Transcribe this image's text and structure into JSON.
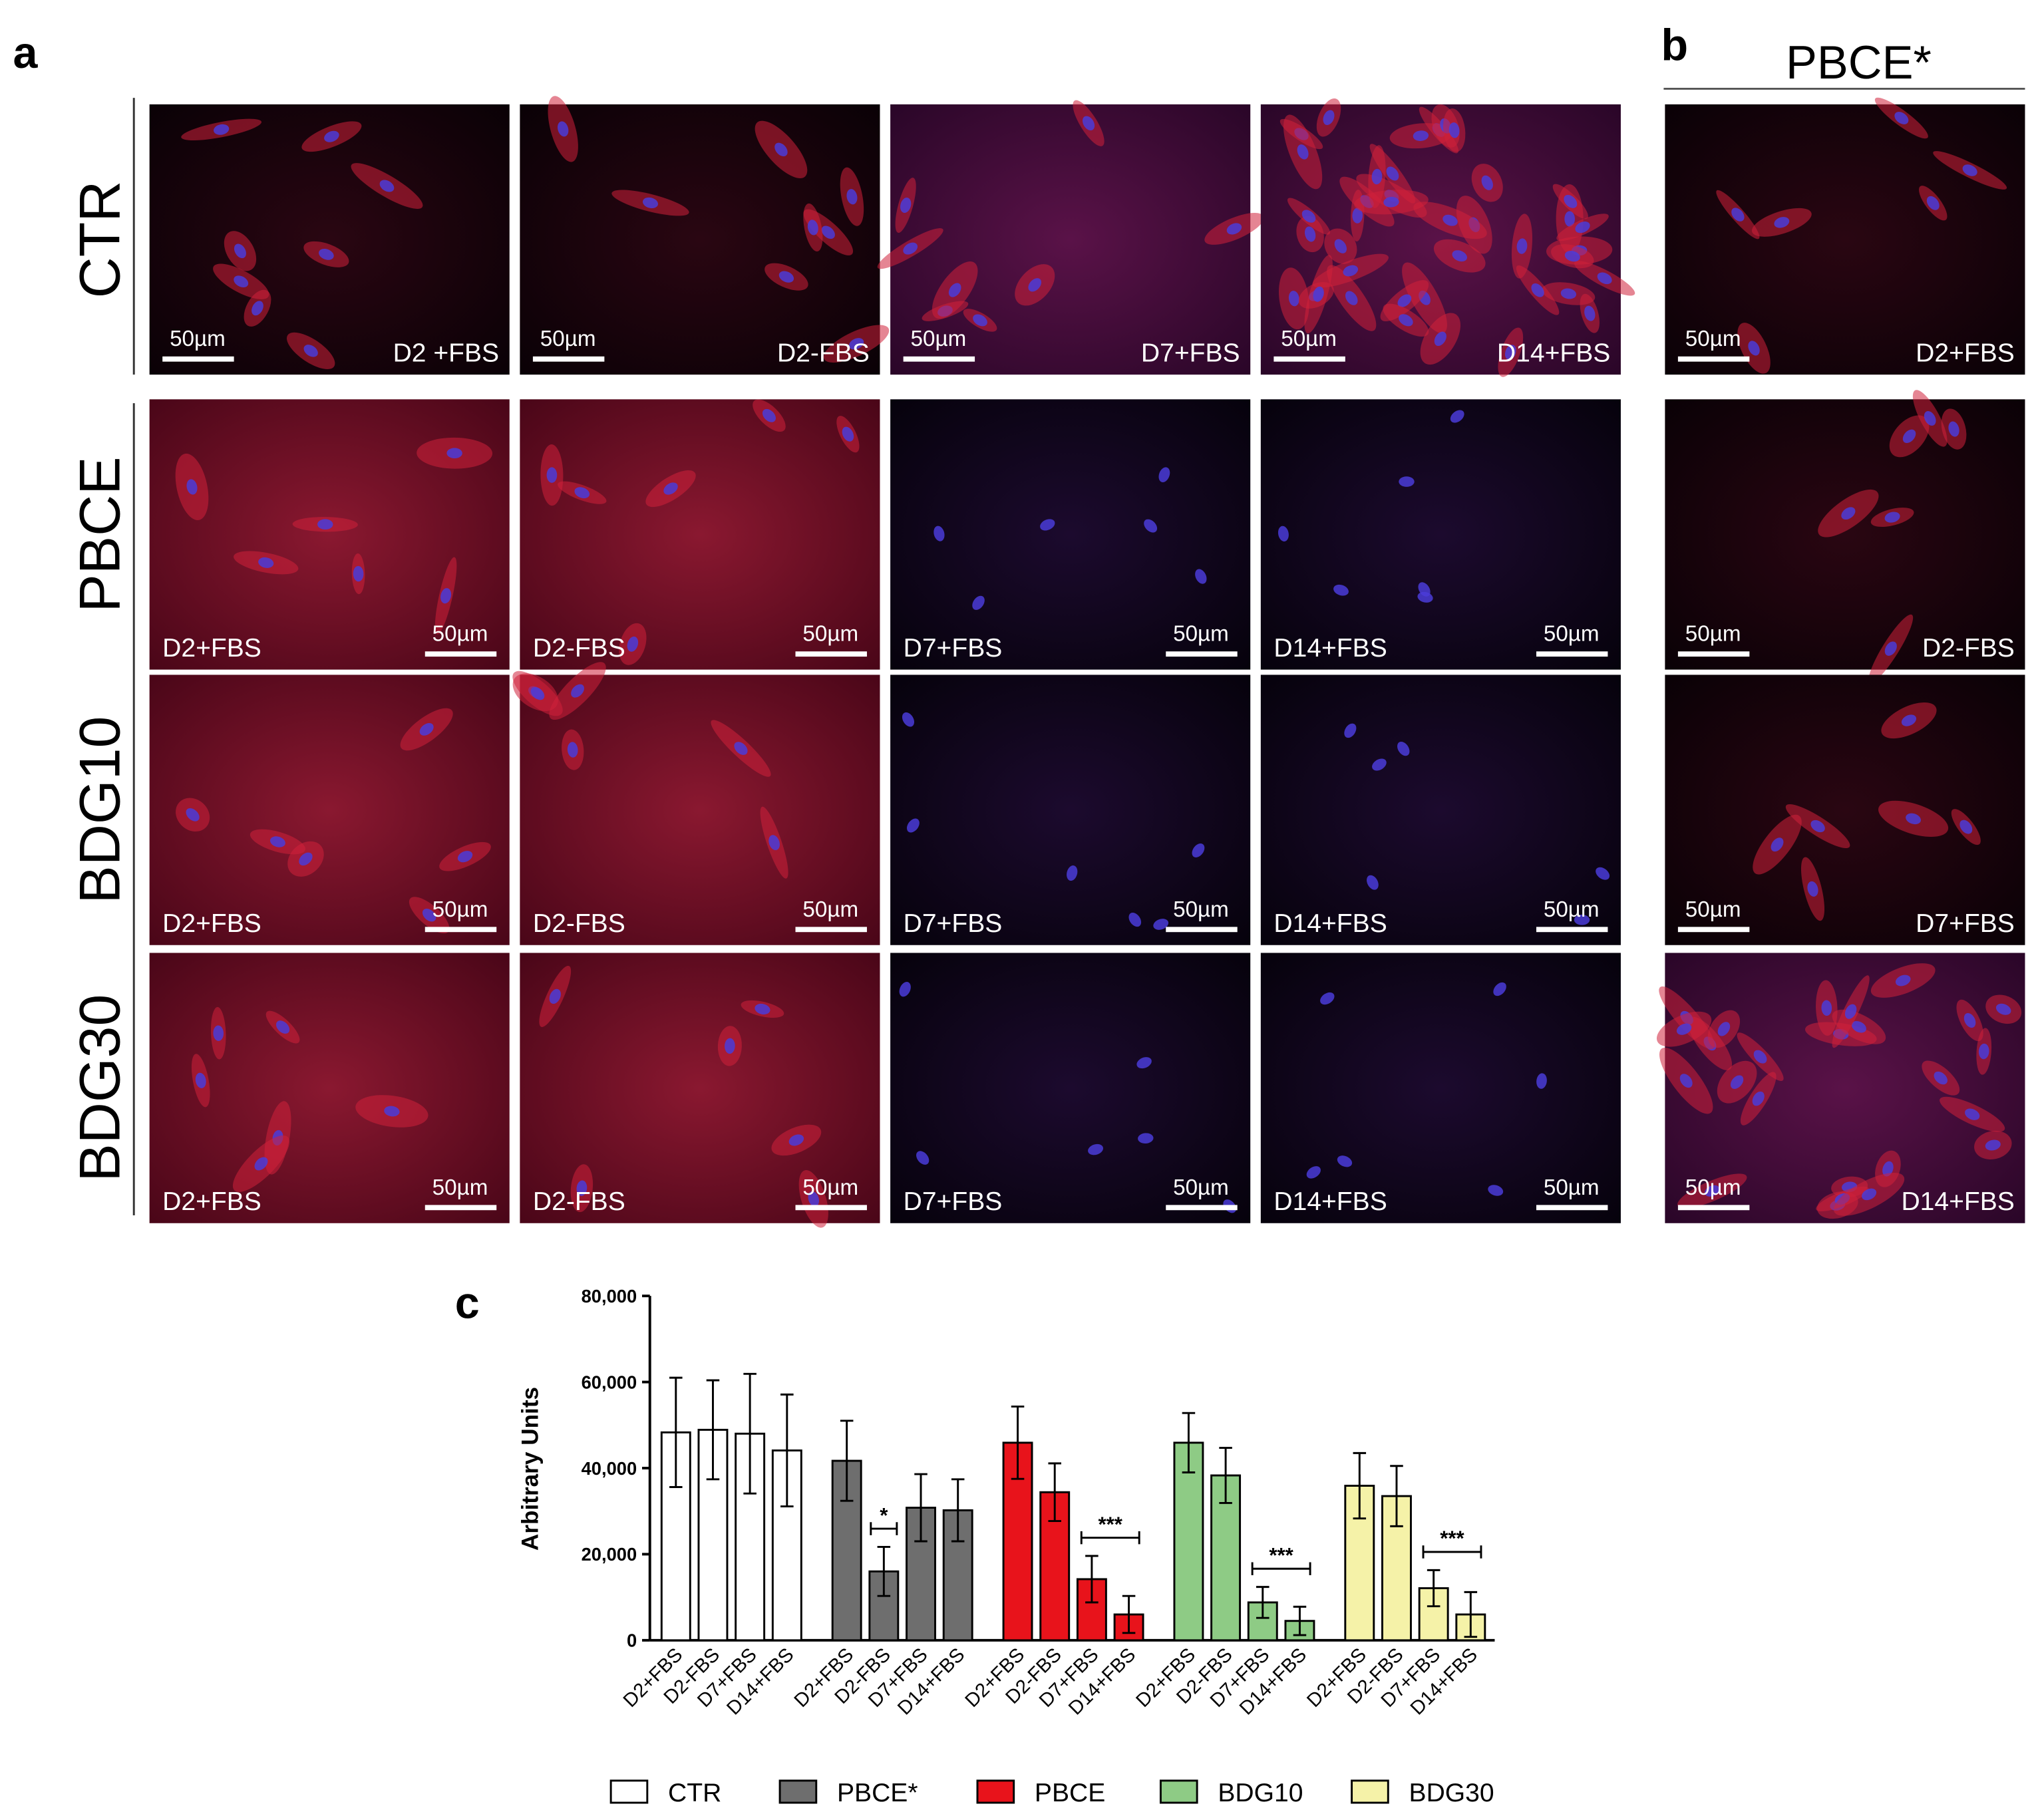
{
  "panels": {
    "a": {
      "label": "a",
      "rows": [
        {
          "name": "CTR",
          "images": [
            {
              "label": "D2 +FBS",
              "scale_bar": "50µm"
            },
            {
              "label": "D2-FBS",
              "scale_bar": "50µm"
            },
            {
              "label": "D7+FBS",
              "scale_bar": "50µm"
            },
            {
              "label": "D14+FBS",
              "scale_bar": "50µm"
            }
          ]
        },
        {
          "name": "PBCE",
          "images": [
            {
              "label": "D2+FBS",
              "scale_bar": "50µm"
            },
            {
              "label": "D2-FBS",
              "scale_bar": "50µm"
            },
            {
              "label": "D7+FBS",
              "scale_bar": "50µm"
            },
            {
              "label": "D14+FBS",
              "scale_bar": "50µm"
            }
          ]
        },
        {
          "name": "BDG10",
          "images": [
            {
              "label": "D2+FBS",
              "scale_bar": "50µm"
            },
            {
              "label": "D2-FBS",
              "scale_bar": "50µm"
            },
            {
              "label": "D7+FBS",
              "scale_bar": "50µm"
            },
            {
              "label": "D14+FBS",
              "scale_bar": "50µm"
            }
          ]
        },
        {
          "name": "BDG30",
          "images": [
            {
              "label": "D2+FBS",
              "scale_bar": "50µm"
            },
            {
              "label": "D2-FBS",
              "scale_bar": "50µm"
            },
            {
              "label": "D7+FBS",
              "scale_bar": "50µm"
            },
            {
              "label": "D14+FBS",
              "scale_bar": "50µm"
            }
          ]
        }
      ]
    },
    "b": {
      "label": "b",
      "title": "PBCE*",
      "images": [
        {
          "label": "D2+FBS",
          "scale_bar": "50µm"
        },
        {
          "label": "D2-FBS",
          "scale_bar": "50µm"
        },
        {
          "label": "D7+FBS",
          "scale_bar": "50µm"
        },
        {
          "label": "D14+FBS",
          "scale_bar": "50µm"
        }
      ]
    },
    "c": {
      "label": "c"
    }
  },
  "chart_data": {
    "type": "bar",
    "y_label": "Arbitrary Units",
    "categories": [
      "D2+FBS",
      "D2-FBS",
      "D7+FBS",
      "D14+FBS"
    ],
    "ylim": [
      0,
      80000
    ],
    "yticks": [
      0,
      {
        "value": 20000,
        "label": "20,000"
      },
      {
        "value": 40000,
        "label": "40,000"
      },
      {
        "value": 60000,
        "label": "60,000"
      },
      {
        "value": 80000,
        "label": "80,000"
      }
    ],
    "series": [
      {
        "name": "CTR",
        "color": "#ffffff",
        "values": [
          48300,
          48900,
          48000,
          44100
        ],
        "errors": [
          12700,
          11500,
          13900,
          13000
        ]
      },
      {
        "name": "PBCE*",
        "color": "#6e6e6e",
        "values": [
          41700,
          16000,
          30800,
          30200
        ],
        "errors": [
          9300,
          5700,
          7800,
          7200
        ]
      },
      {
        "name": "PBCE",
        "color": "#e8131b",
        "values": [
          45900,
          34400,
          14200,
          6000
        ],
        "errors": [
          8400,
          6700,
          5400,
          4300
        ]
      },
      {
        "name": "BDG10",
        "color": "#8ecb85",
        "values": [
          45900,
          38300,
          8800,
          4500
        ],
        "errors": [
          6900,
          6400,
          3600,
          3300
        ]
      },
      {
        "name": "BDG30",
        "color": "#f5f2a8",
        "values": [
          35900,
          33500,
          12100,
          6000
        ],
        "errors": [
          7600,
          7000,
          4200,
          5200
        ]
      }
    ],
    "significance": [
      {
        "series": "PBCE*",
        "categories": [
          "D2-FBS"
        ],
        "label": "*"
      },
      {
        "series": "PBCE",
        "categories": [
          "D7+FBS",
          "D14+FBS"
        ],
        "label": "***"
      },
      {
        "series": "BDG10",
        "categories": [
          "D7+FBS",
          "D14+FBS"
        ],
        "label": "***"
      },
      {
        "series": "BDG30",
        "categories": [
          "D7+FBS",
          "D14+FBS"
        ],
        "label": "***"
      }
    ]
  }
}
